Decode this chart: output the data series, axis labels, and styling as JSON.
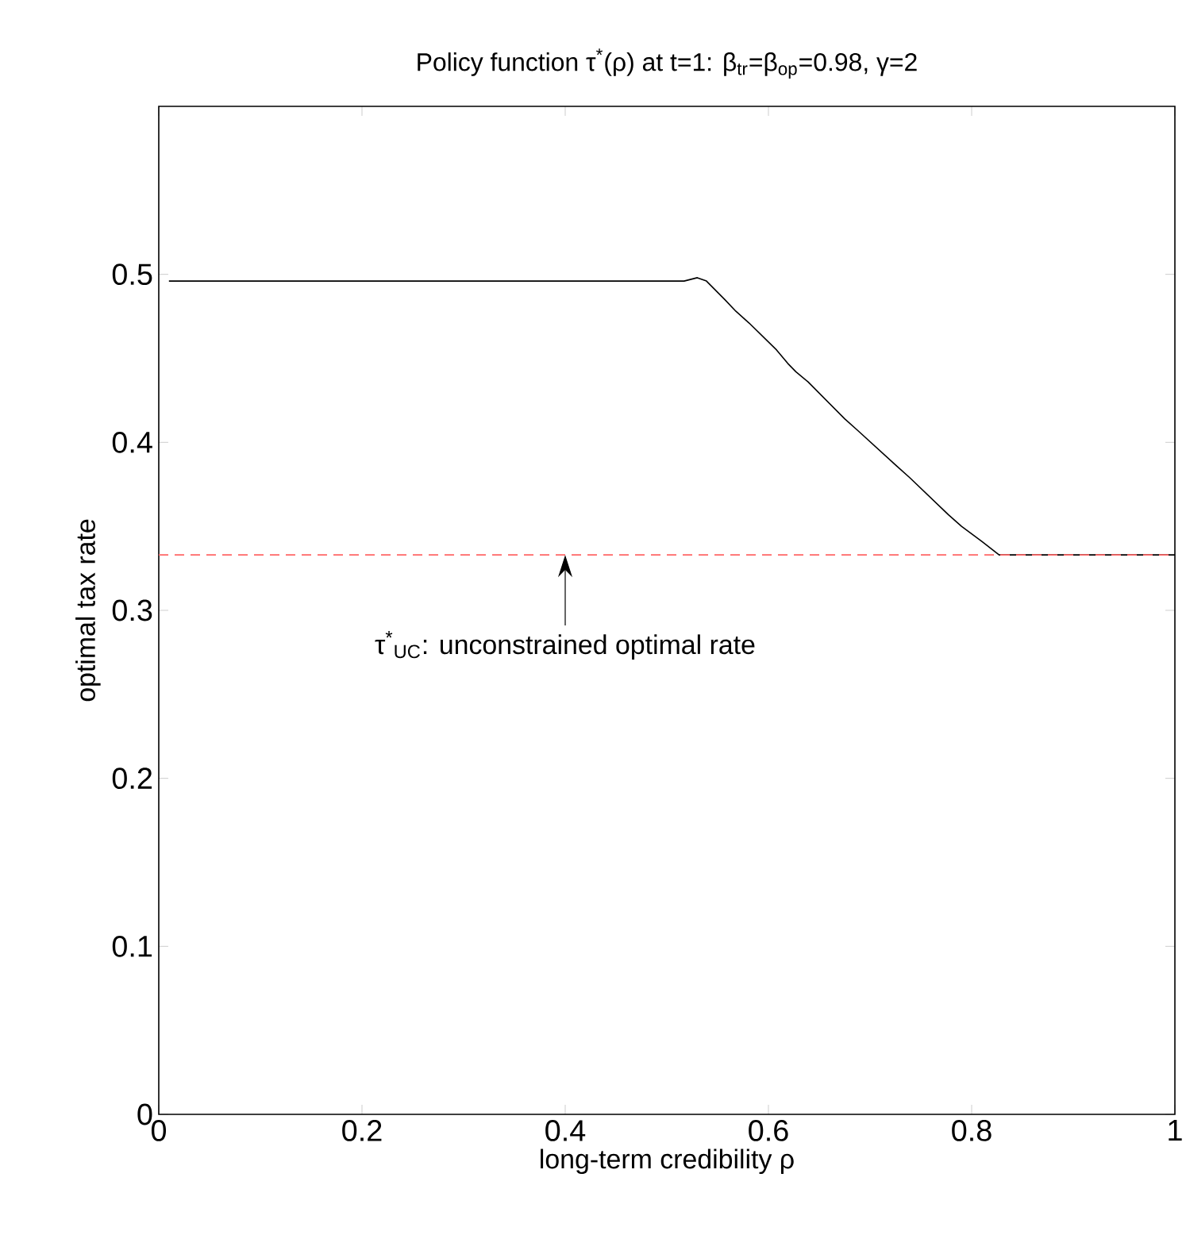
{
  "chart_data": {
    "type": "line",
    "title": "Policy function τ$^{*}$(ρ) at t=1: β$_{tr}$=β$_{op}$=0.98, γ=2",
    "xlabel": "long-term credibility ρ",
    "ylabel": "optimal tax rate",
    "x": [
      0.01,
      0.517,
      0.53,
      0.539,
      0.557,
      0.568,
      0.581,
      0.608,
      0.619,
      0.627,
      0.639,
      0.675,
      0.688,
      0.726,
      0.739,
      0.777,
      0.79,
      0.81,
      0.827,
      1.0
    ],
    "series": [
      {
        "color": "#000000",
        "values": [
          0.496,
          0.496,
          0.498,
          0.496,
          0.485,
          0.478,
          0.471,
          0.455,
          0.447,
          0.442,
          0.436,
          0.414,
          0.407,
          0.386,
          0.379,
          0.357,
          0.35,
          0.341,
          0.333,
          0.333
        ]
      }
    ],
    "xlim": [
      0,
      1
    ],
    "ylim": [
      0,
      0.6
    ],
    "xticks": [
      0,
      0.2,
      0.4,
      0.6,
      0.8,
      1
    ],
    "yticks": [
      0,
      0.1,
      0.2,
      0.3,
      0.4,
      0.5
    ],
    "ref_lines": [
      {
        "axis": "y",
        "value": 0.333,
        "color": "#ff6666",
        "line_style": "dashed"
      }
    ],
    "annotations": [
      {
        "text": "τ$^{*}$$_{UC}$: unconstrained optimal rate",
        "x": 0.4,
        "y": 0.333
      }
    ],
    "grid": false,
    "marker": "none",
    "line_style": "solid"
  }
}
